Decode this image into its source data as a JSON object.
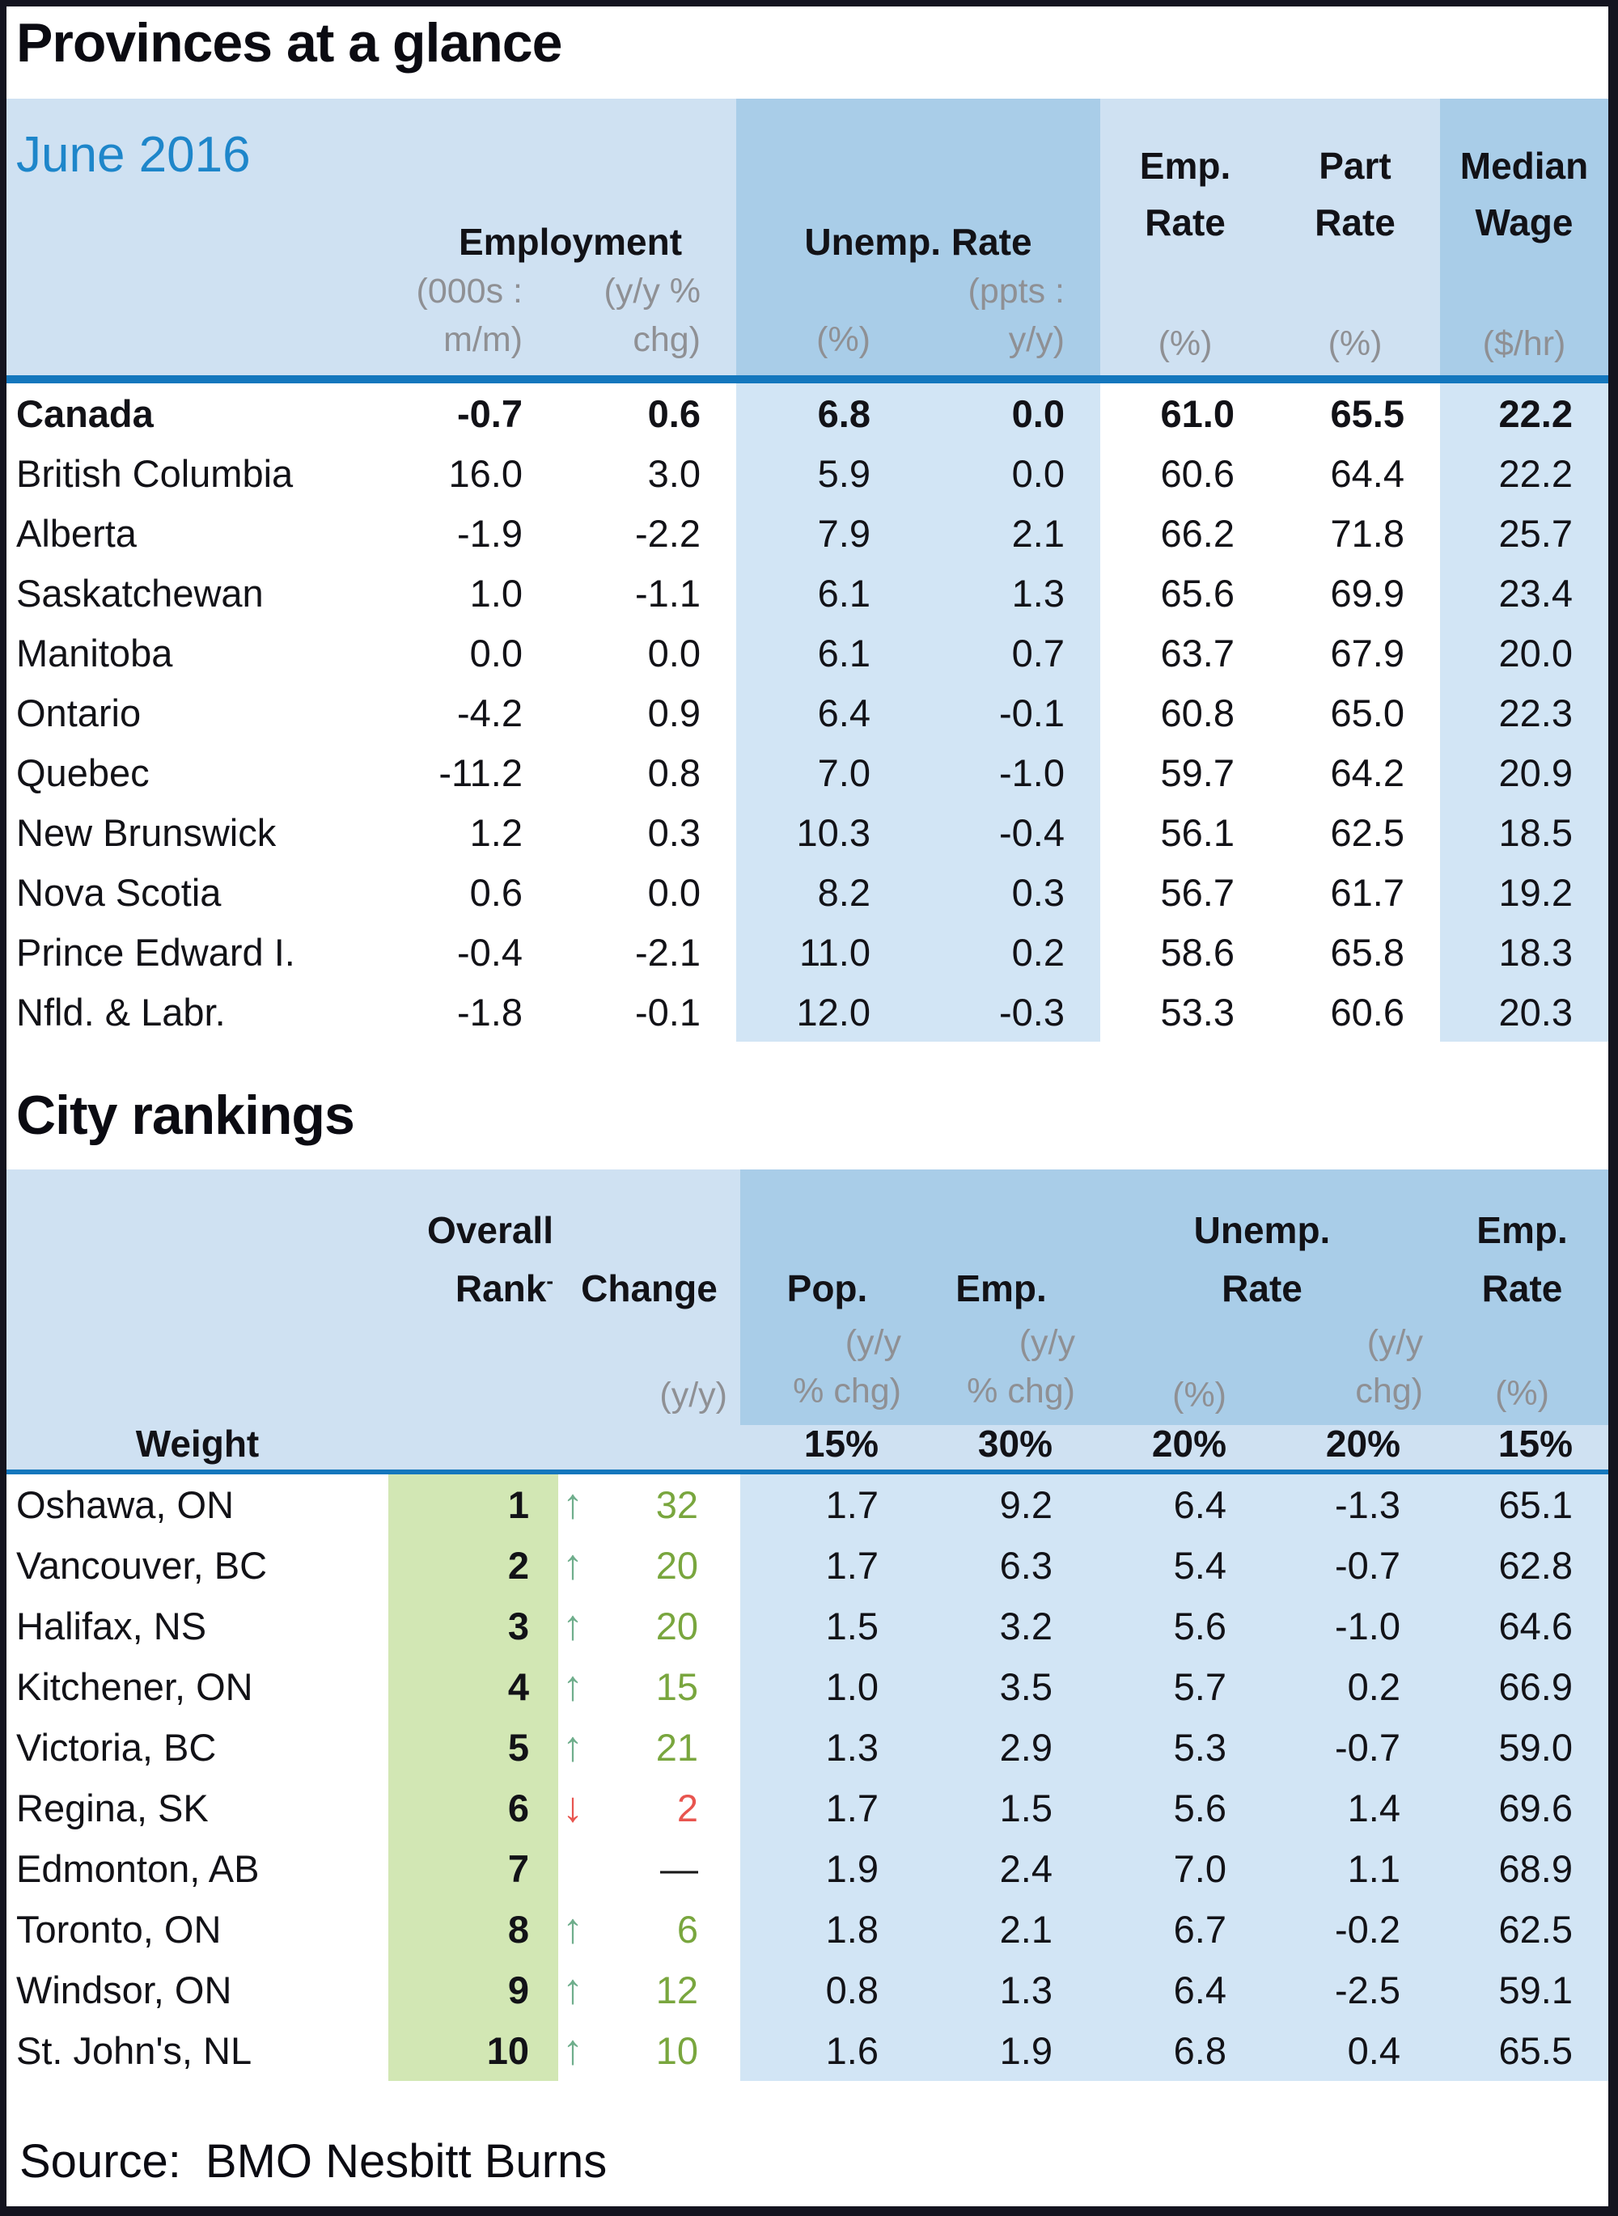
{
  "titles": {
    "provinces": "Provinces at a glance",
    "cities": "City rankings"
  },
  "source": {
    "label": "Source:",
    "value": "BMO Nesbitt Burns"
  },
  "colors": {
    "header_light_blue": "#cfe1f2",
    "header_dark_blue": "#a9cde8",
    "body_blue": "#d2e5f5",
    "rank_green": "#d2e7b4",
    "divider_blue": "#1477bd",
    "period_blue": "#1e86ca",
    "up_green": "#79a63e",
    "down_red": "#e8554f"
  },
  "provinces": {
    "period": "June 2016",
    "headers": {
      "employment": "Employment",
      "emp_mm_unit1": "(000s :",
      "emp_mm_unit2": "m/m)",
      "emp_yy_unit1": "(y/y %",
      "emp_yy_unit2": "chg)",
      "unemp": "Unemp. Rate",
      "unemp_unit": "(%)",
      "unemp_yy_unit1": "(ppts :",
      "unemp_yy_unit2": "y/y)",
      "emp_rate1": "Emp.",
      "emp_rate2": "Rate",
      "emp_rate_unit": "(%)",
      "part_rate1": "Part",
      "part_rate2": "Rate",
      "part_rate_unit": "(%)",
      "wage1": "Median",
      "wage2": "Wage",
      "wage_unit": "($/hr)"
    },
    "rows": [
      {
        "name": "Canada",
        "emp_mm": "-0.7",
        "emp_yy": "0.6",
        "unemp": "6.8",
        "unemp_yy": "0.0",
        "emp_rate": "61.0",
        "part_rate": "65.5",
        "wage": "22.2"
      },
      {
        "name": "British Columbia",
        "emp_mm": "16.0",
        "emp_yy": "3.0",
        "unemp": "5.9",
        "unemp_yy": "0.0",
        "emp_rate": "60.6",
        "part_rate": "64.4",
        "wage": "22.2"
      },
      {
        "name": "Alberta",
        "emp_mm": "-1.9",
        "emp_yy": "-2.2",
        "unemp": "7.9",
        "unemp_yy": "2.1",
        "emp_rate": "66.2",
        "part_rate": "71.8",
        "wage": "25.7"
      },
      {
        "name": "Saskatchewan",
        "emp_mm": "1.0",
        "emp_yy": "-1.1",
        "unemp": "6.1",
        "unemp_yy": "1.3",
        "emp_rate": "65.6",
        "part_rate": "69.9",
        "wage": "23.4"
      },
      {
        "name": "Manitoba",
        "emp_mm": "0.0",
        "emp_yy": "0.0",
        "unemp": "6.1",
        "unemp_yy": "0.7",
        "emp_rate": "63.7",
        "part_rate": "67.9",
        "wage": "20.0"
      },
      {
        "name": "Ontario",
        "emp_mm": "-4.2",
        "emp_yy": "0.9",
        "unemp": "6.4",
        "unemp_yy": "-0.1",
        "emp_rate": "60.8",
        "part_rate": "65.0",
        "wage": "22.3"
      },
      {
        "name": "Quebec",
        "emp_mm": "-11.2",
        "emp_yy": "0.8",
        "unemp": "7.0",
        "unemp_yy": "-1.0",
        "emp_rate": "59.7",
        "part_rate": "64.2",
        "wage": "20.9"
      },
      {
        "name": "New Brunswick",
        "emp_mm": "1.2",
        "emp_yy": "0.3",
        "unemp": "10.3",
        "unemp_yy": "-0.4",
        "emp_rate": "56.1",
        "part_rate": "62.5",
        "wage": "18.5"
      },
      {
        "name": "Nova Scotia",
        "emp_mm": "0.6",
        "emp_yy": "0.0",
        "unemp": "8.2",
        "unemp_yy": "0.3",
        "emp_rate": "56.7",
        "part_rate": "61.7",
        "wage": "19.2"
      },
      {
        "name": "Prince Edward I.",
        "emp_mm": "-0.4",
        "emp_yy": "-2.1",
        "unemp": "11.0",
        "unemp_yy": "0.2",
        "emp_rate": "58.6",
        "part_rate": "65.8",
        "wage": "18.3"
      },
      {
        "name": "Nfld. & Labr.",
        "emp_mm": "-1.8",
        "emp_yy": "-0.1",
        "unemp": "12.0",
        "unemp_yy": "-0.3",
        "emp_rate": "53.3",
        "part_rate": "60.6",
        "wage": "20.3"
      }
    ]
  },
  "cities": {
    "headers": {
      "overall": "Overall",
      "rank": "Rank",
      "rank_note": "-",
      "change": "Change",
      "change_unit": "(y/y)",
      "pop": "Pop.",
      "pop_unit1": "(y/y",
      "pop_unit2": "% chg)",
      "emp": "Emp.",
      "emp_unit1": "(y/y",
      "emp_unit2": "% chg)",
      "unemp1": "Unemp.",
      "unemp2": "Rate",
      "unemp_unit": "(%)",
      "unemp_yy_unit1": "(y/y",
      "unemp_yy_unit2": "chg)",
      "emp_rate1": "Emp.",
      "emp_rate2": "Rate",
      "emp_rate_unit": "(%)"
    },
    "weight_label": "Weight",
    "weights": {
      "pop": "15%",
      "emp": "30%",
      "unemp": "20%",
      "unemp_yy": "20%",
      "emp_rate": "15%"
    },
    "rows": [
      {
        "name": "Oshawa, ON",
        "rank": "1",
        "arrow": "↑",
        "change": "32",
        "pop": "1.7",
        "emp": "9.2",
        "unemp": "6.4",
        "unemp_yy": "-1.3",
        "emp_rate": "65.1"
      },
      {
        "name": "Vancouver, BC",
        "rank": "2",
        "arrow": "↑",
        "change": "20",
        "pop": "1.7",
        "emp": "6.3",
        "unemp": "5.4",
        "unemp_yy": "-0.7",
        "emp_rate": "62.8"
      },
      {
        "name": "Halifax, NS",
        "rank": "3",
        "arrow": "↑",
        "change": "20",
        "pop": "1.5",
        "emp": "3.2",
        "unemp": "5.6",
        "unemp_yy": "-1.0",
        "emp_rate": "64.6"
      },
      {
        "name": "Kitchener, ON",
        "rank": "4",
        "arrow": "↑",
        "change": "15",
        "pop": "1.0",
        "emp": "3.5",
        "unemp": "5.7",
        "unemp_yy": "0.2",
        "emp_rate": "66.9"
      },
      {
        "name": "Victoria, BC",
        "rank": "5",
        "arrow": "↑",
        "change": "21",
        "pop": "1.3",
        "emp": "2.9",
        "unemp": "5.3",
        "unemp_yy": "-0.7",
        "emp_rate": "59.0"
      },
      {
        "name": "Regina, SK",
        "rank": "6",
        "arrow": "↓",
        "change": "2",
        "pop": "1.7",
        "emp": "1.5",
        "unemp": "5.6",
        "unemp_yy": "1.4",
        "emp_rate": "69.6"
      },
      {
        "name": "Edmonton, AB",
        "rank": "7",
        "arrow": "",
        "change": "—",
        "pop": "1.9",
        "emp": "2.4",
        "unemp": "7.0",
        "unemp_yy": "1.1",
        "emp_rate": "68.9"
      },
      {
        "name": "Toronto, ON",
        "rank": "8",
        "arrow": "↑",
        "change": "6",
        "pop": "1.8",
        "emp": "2.1",
        "unemp": "6.7",
        "unemp_yy": "-0.2",
        "emp_rate": "62.5"
      },
      {
        "name": "Windsor, ON",
        "rank": "9",
        "arrow": "↑",
        "change": "12",
        "pop": "0.8",
        "emp": "1.3",
        "unemp": "6.4",
        "unemp_yy": "-2.5",
        "emp_rate": "59.1"
      },
      {
        "name": "St. John's, NL",
        "rank": "10",
        "arrow": "↑",
        "change": "10",
        "pop": "1.6",
        "emp": "1.9",
        "unemp": "6.8",
        "unemp_yy": "0.4",
        "emp_rate": "65.5"
      }
    ]
  }
}
